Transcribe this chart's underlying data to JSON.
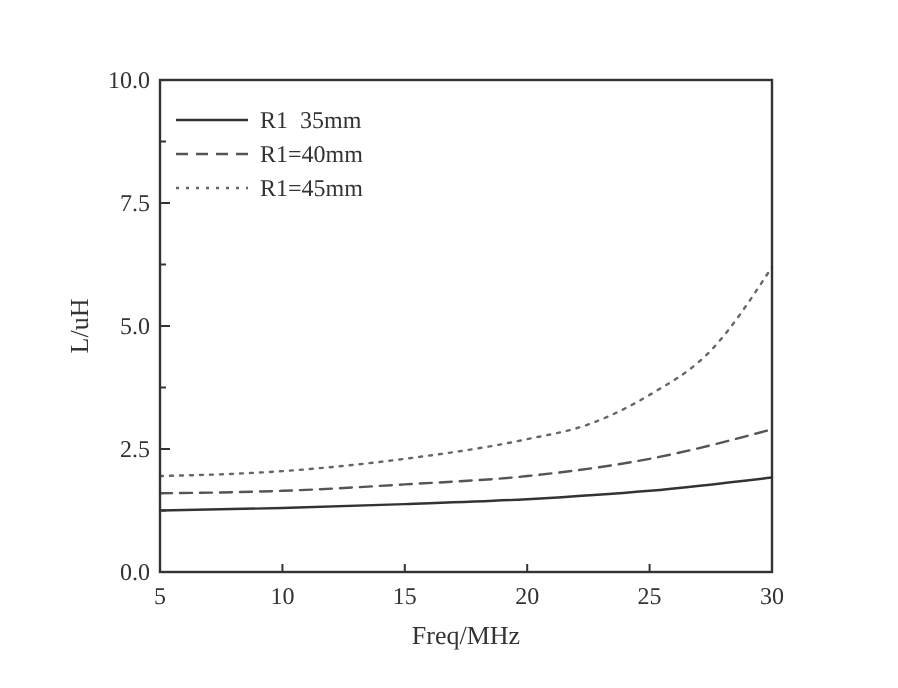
{
  "chart_data": {
    "type": "line",
    "xlabel": "Freq/MHz",
    "ylabel": "L/uH",
    "xlim": [
      5,
      30
    ],
    "ylim": [
      0,
      10
    ],
    "xticks": [
      5,
      10,
      15,
      20,
      25,
      30
    ],
    "yticks": [
      {
        "value": 0,
        "label": "0.0"
      },
      {
        "value": 1.25,
        "label": null
      },
      {
        "value": 2.5,
        "label": "2.5"
      },
      {
        "value": 3.75,
        "label": null
      },
      {
        "value": 5,
        "label": "5.0"
      },
      {
        "value": 6.25,
        "label": null
      },
      {
        "value": 7.5,
        "label": "7.5"
      },
      {
        "value": 8.75,
        "label": null
      },
      {
        "value": 10,
        "label": "10.0"
      }
    ],
    "grid": false,
    "legend": "top left",
    "marker": "none",
    "series": [
      {
        "name": "R1  35mm",
        "color": "#333333",
        "line_style": "solid",
        "x": [
          5,
          10,
          15,
          20,
          25,
          30
        ],
        "values": [
          1.25,
          1.3,
          1.38,
          1.48,
          1.65,
          1.92
        ]
      },
      {
        "name": "R1=40mm",
        "color": "#555555",
        "line_style": "dashed",
        "x": [
          5,
          10,
          15,
          20,
          25,
          30
        ],
        "values": [
          1.6,
          1.65,
          1.78,
          1.95,
          2.3,
          2.9
        ]
      },
      {
        "name": "R1=45mm",
        "color": "#666666",
        "line_style": "dotted",
        "x": [
          5,
          10,
          15,
          20,
          22.5,
          25,
          27.5,
          30
        ],
        "values": [
          1.95,
          2.05,
          2.3,
          2.7,
          3.0,
          3.6,
          4.5,
          6.2
        ]
      }
    ]
  }
}
